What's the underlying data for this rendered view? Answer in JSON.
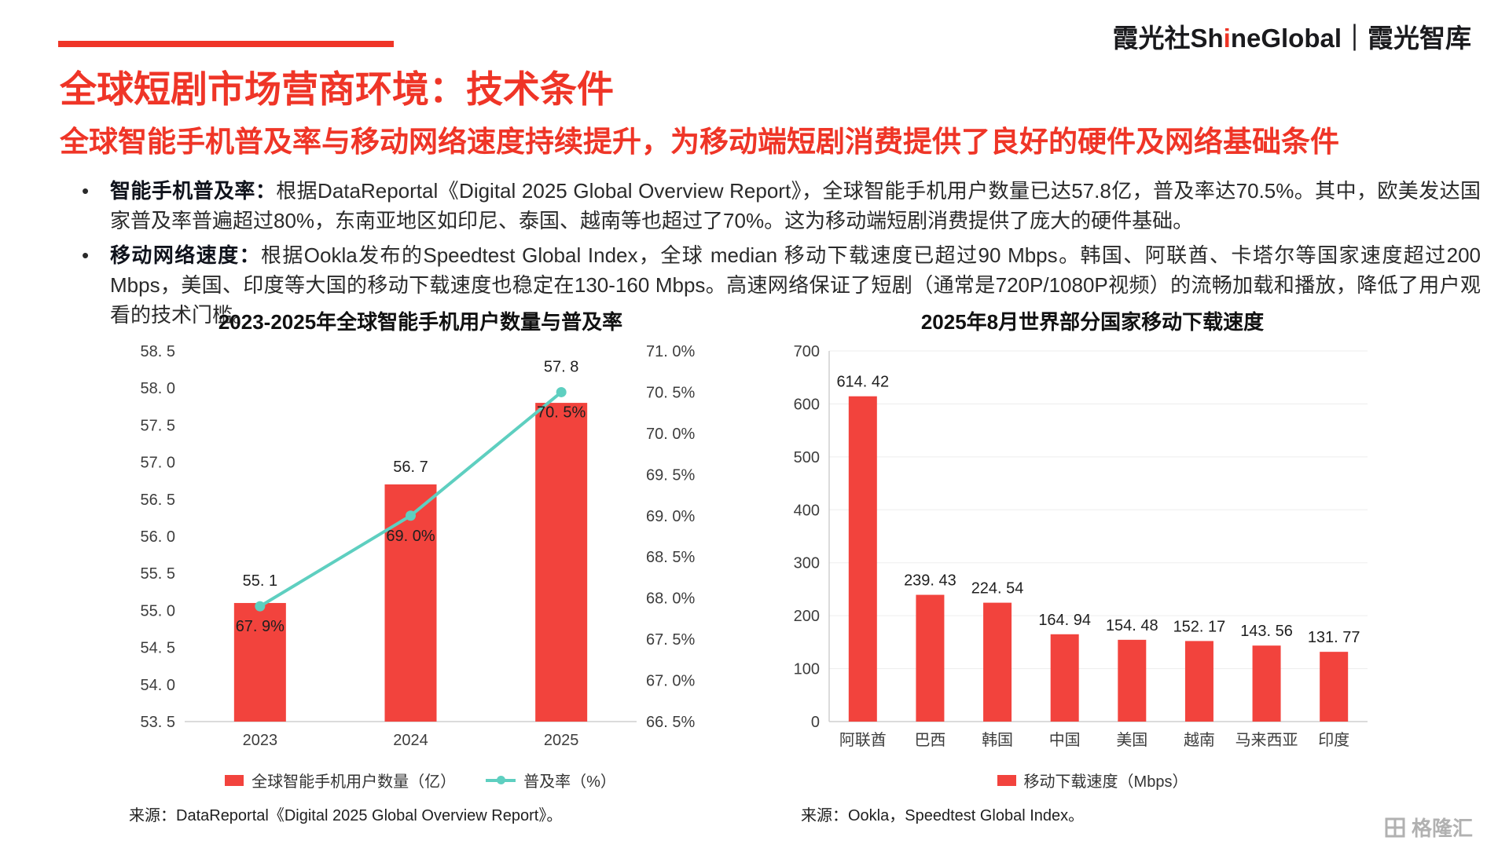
{
  "header": {
    "brand_left": "霞光社Sh",
    "brand_accent": "i",
    "brand_right": "neGlobal｜霞光智库"
  },
  "title": "全球短剧市场营商环境：技术条件",
  "subtitle": "全球智能手机普及率与移动网络速度持续提升，为移动端短剧消费提供了良好的硬件及网络基础条件",
  "bullets": [
    {
      "lead": "智能手机普及率：",
      "text": "根据DataReportal《Digital 2025 Global Overview Report》，全球智能手机用户数量已达57.8亿，普及率达70.5%。其中，欧美发达国家普及率普遍超过80%，东南亚地区如印尼、泰国、越南等也超过了70%。这为移动端短剧消费提供了庞大的硬件基础。"
    },
    {
      "lead": "移动网络速度：",
      "text": "根据Ookla发布的Speedtest Global Index，全球 median 移动下载速度已超过90 Mbps。韩国、阿联酋、卡塔尔等国家速度超过200 Mbps，美国、印度等大国的移动下载速度也稳定在130-160 Mbps。高速网络保证了短剧（通常是720P/1080P视频）的流畅加载和播放，降低了用户观看的技术门槛。"
    }
  ],
  "colors": {
    "accent_red": "#ef3527",
    "bar_red": "#f2433d",
    "line_teal": "#5ecfc0"
  },
  "chart_data": [
    {
      "type": "bar+line",
      "title": "2023-2025年全球智能手机用户数量与普及率",
      "categories": [
        "2023",
        "2024",
        "2025"
      ],
      "series": [
        {
          "name": "全球智能手机用户数量（亿）",
          "type": "bar",
          "axis": "left",
          "values": [
            55.1,
            56.7,
            57.8
          ],
          "labels": [
            "55. 1",
            "56. 7",
            "57. 8"
          ],
          "color": "#f2433d"
        },
        {
          "name": "普及率（%）",
          "type": "line",
          "axis": "right",
          "values": [
            67.9,
            69.0,
            70.5
          ],
          "labels": [
            "67. 9%",
            "69. 0%",
            "70. 5%"
          ],
          "color": "#5ecfc0"
        }
      ],
      "left_axis": {
        "min": 53.5,
        "max": 58.5,
        "ticks": [
          "58. 5",
          "58. 0",
          "57. 5",
          "57. 0",
          "56. 5",
          "56. 0",
          "55. 5",
          "55. 0",
          "54. 5",
          "54. 0",
          "53. 5"
        ]
      },
      "right_axis": {
        "min": 66.5,
        "max": 71.0,
        "ticks": [
          "71. 0%",
          "70. 5%",
          "70. 0%",
          "69. 5%",
          "69. 0%",
          "68. 5%",
          "68. 0%",
          "67. 5%",
          "67. 0%",
          "66. 5%"
        ]
      },
      "grid": false,
      "legend_position": "bottom",
      "source": "来源：DataReportal《Digital 2025 Global Overview Report》。"
    },
    {
      "type": "bar",
      "title": "2025年8月世界部分国家移动下载速度",
      "categories": [
        "阿联酋",
        "巴西",
        "韩国",
        "中国",
        "美国",
        "越南",
        "马来西亚",
        "印度"
      ],
      "values": [
        614.42,
        239.43,
        224.54,
        164.94,
        154.48,
        152.17,
        143.56,
        131.77
      ],
      "labels": [
        "614. 42",
        "239. 43",
        "224. 54",
        "164. 94",
        "154. 48",
        "152. 17",
        "143. 56",
        "131. 77"
      ],
      "ylim": [
        0,
        700
      ],
      "yticks": [
        "700",
        "600",
        "500",
        "400",
        "300",
        "200",
        "100",
        "0"
      ],
      "grid": true,
      "legend": "移动下载速度（Mbps）",
      "legend_position": "bottom",
      "source": "来源：Ookla，Speedtest Global Index。"
    }
  ],
  "watermark": "格隆汇"
}
